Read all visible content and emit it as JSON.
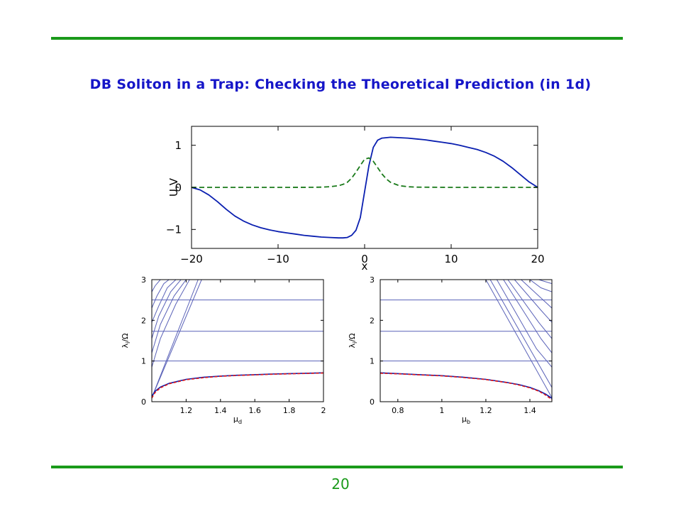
{
  "slide": {
    "title": "DB Soliton in a Trap: Checking the Theoretical Prediction (in 1d)",
    "page_number": "20",
    "rule_color": "#1a9a1a",
    "title_color": "#1515c8"
  },
  "chart_data": [
    {
      "type": "line",
      "xlabel": "x",
      "ylabel": "U,V",
      "xlim": [
        -20,
        20
      ],
      "ylim": [
        -1.45,
        1.45
      ],
      "xticks": [
        -20,
        -10,
        0,
        10,
        20
      ],
      "xtick_labels": [
        "−20",
        "−10",
        "0",
        "10",
        "20"
      ],
      "yticks": [
        -1,
        0,
        1
      ],
      "ytick_labels": [
        "−1",
        "0",
        "1"
      ],
      "series": [
        {
          "style": "solid",
          "color": "#0a1fb0",
          "x": [
            -20,
            -19,
            -18,
            -17,
            -16,
            -15,
            -14,
            -13,
            -12,
            -11,
            -10,
            -9,
            -8,
            -7,
            -6,
            -5,
            -4,
            -3,
            -2.5,
            -2,
            -1.5,
            -1,
            -0.5,
            0,
            0.5,
            1,
            1.5,
            2,
            2.5,
            3,
            4,
            5,
            6,
            7,
            8,
            9,
            10,
            11,
            12,
            13,
            14,
            15,
            16,
            17,
            18,
            19,
            20
          ],
          "y": [
            0,
            -0.06,
            -0.18,
            -0.34,
            -0.52,
            -0.68,
            -0.8,
            -0.89,
            -0.96,
            -1.01,
            -1.05,
            -1.08,
            -1.11,
            -1.14,
            -1.16,
            -1.18,
            -1.19,
            -1.2,
            -1.2,
            -1.19,
            -1.14,
            -1.02,
            -0.72,
            -0.1,
            0.52,
            0.95,
            1.12,
            1.17,
            1.18,
            1.19,
            1.18,
            1.17,
            1.15,
            1.13,
            1.1,
            1.07,
            1.04,
            1.0,
            0.95,
            0.9,
            0.83,
            0.74,
            0.62,
            0.47,
            0.3,
            0.13,
            0.0
          ]
        },
        {
          "style": "dashed",
          "color": "#1a7a1a",
          "x": [
            -20,
            -10,
            -6,
            -5,
            -4,
            -3,
            -2.5,
            -2,
            -1.5,
            -1,
            -0.5,
            0,
            0.5,
            1,
            1.5,
            2,
            2.5,
            3,
            4,
            5,
            6,
            10,
            20
          ],
          "y": [
            0,
            0,
            0.002,
            0.005,
            0.015,
            0.04,
            0.07,
            0.12,
            0.22,
            0.36,
            0.52,
            0.67,
            0.7,
            0.62,
            0.47,
            0.32,
            0.2,
            0.12,
            0.04,
            0.015,
            0.005,
            0,
            0
          ]
        }
      ]
    },
    {
      "type": "line",
      "xlabel": "μ",
      "xlabel_sub": "d",
      "ylabel": "λ",
      "ylabel_sub": "i",
      "ylabel_suffix": "/Ω",
      "xlim": [
        1.0,
        2.0
      ],
      "ylim": [
        0,
        3
      ],
      "xticks": [
        1.2,
        1.4,
        1.6,
        1.8,
        2.0
      ],
      "xtick_labels": [
        "1.2",
        "1.4",
        "1.6",
        "1.8",
        "2"
      ],
      "yticks": [
        0,
        1,
        2,
        3
      ],
      "ytick_labels": [
        "0",
        "1",
        "2",
        "3"
      ],
      "horizontal_lines": [
        1.0,
        1.732,
        2.5
      ],
      "dense_lines": [
        {
          "x": [
            1.0,
            1.27
          ],
          "y": [
            0.1,
            3.0
          ]
        },
        {
          "x": [
            1.0,
            1.29
          ],
          "y": [
            0.1,
            3.0
          ]
        },
        {
          "x": [
            1.0,
            1.05,
            1.14,
            1.22
          ],
          "y": [
            0.85,
            1.55,
            2.4,
            3.0
          ]
        },
        {
          "x": [
            1.0,
            1.05,
            1.13,
            1.2
          ],
          "y": [
            1.2,
            1.9,
            2.6,
            3.0
          ]
        },
        {
          "x": [
            1.0,
            1.04,
            1.11,
            1.17
          ],
          "y": [
            1.55,
            2.1,
            2.7,
            3.0
          ]
        },
        {
          "x": [
            1.0,
            1.04,
            1.09,
            1.14
          ],
          "y": [
            1.95,
            2.35,
            2.8,
            3.0
          ]
        },
        {
          "x": [
            1.0,
            1.03,
            1.07,
            1.1
          ],
          "y": [
            2.3,
            2.6,
            2.9,
            3.0
          ]
        },
        {
          "x": [
            1.0,
            1.02,
            1.05
          ],
          "y": [
            2.7,
            2.85,
            3.0
          ]
        }
      ],
      "series": [
        {
          "style": "solid",
          "color": "#0a1fb0",
          "x": [
            1.0,
            1.02,
            1.05,
            1.1,
            1.2,
            1.3,
            1.4,
            1.5,
            1.6,
            1.7,
            1.8,
            1.9,
            2.0
          ],
          "y": [
            0.13,
            0.26,
            0.36,
            0.45,
            0.55,
            0.6,
            0.63,
            0.65,
            0.665,
            0.68,
            0.69,
            0.7,
            0.71
          ]
        },
        {
          "style": "dashed",
          "color": "#e01818",
          "x": [
            1.0,
            1.02,
            1.05,
            1.1,
            1.2,
            1.3,
            1.4,
            1.5,
            1.6,
            1.7,
            1.8,
            1.9,
            2.0
          ],
          "y": [
            0.09,
            0.23,
            0.34,
            0.44,
            0.54,
            0.59,
            0.625,
            0.645,
            0.66,
            0.675,
            0.685,
            0.695,
            0.705
          ]
        }
      ]
    },
    {
      "type": "line",
      "xlabel": "μ",
      "xlabel_sub": "b",
      "ylabel": "λ",
      "ylabel_sub": "i",
      "ylabel_suffix": "/Ω",
      "xlim": [
        0.72,
        1.5
      ],
      "ylim": [
        0,
        3
      ],
      "xticks": [
        0.8,
        1.0,
        1.2,
        1.4
      ],
      "xtick_labels": [
        "0.8",
        "1",
        "1.2",
        "1.4"
      ],
      "yticks": [
        0,
        1,
        2,
        3
      ],
      "ytick_labels": [
        "0",
        "1",
        "2",
        "3"
      ],
      "horizontal_lines": [
        1.0,
        1.732,
        2.5
      ],
      "dense_lines": [
        {
          "x": [
            1.2,
            1.5
          ],
          "y": [
            3.0,
            0.1
          ]
        },
        {
          "x": [
            1.22,
            1.5
          ],
          "y": [
            3.0,
            0.35
          ]
        },
        {
          "x": [
            1.25,
            1.43,
            1.5
          ],
          "y": [
            3.0,
            1.3,
            0.85
          ]
        },
        {
          "x": [
            1.28,
            1.45,
            1.5
          ],
          "y": [
            3.0,
            1.55,
            1.2
          ]
        },
        {
          "x": [
            1.3,
            1.44,
            1.5
          ],
          "y": [
            3.0,
            1.95,
            1.55
          ]
        },
        {
          "x": [
            1.33,
            1.45,
            1.5
          ],
          "y": [
            3.0,
            2.25,
            1.95
          ]
        },
        {
          "x": [
            1.36,
            1.45,
            1.5
          ],
          "y": [
            3.0,
            2.55,
            2.3
          ]
        },
        {
          "x": [
            1.4,
            1.45,
            1.5
          ],
          "y": [
            3.0,
            2.8,
            2.7
          ]
        },
        {
          "x": [
            1.44,
            1.5
          ],
          "y": [
            3.0,
            2.9
          ]
        }
      ],
      "series": [
        {
          "style": "solid",
          "color": "#0a1fb0",
          "x": [
            0.72,
            0.8,
            0.9,
            1.0,
            1.1,
            1.2,
            1.3,
            1.35,
            1.4,
            1.44,
            1.47,
            1.49,
            1.5
          ],
          "y": [
            0.71,
            0.69,
            0.665,
            0.64,
            0.6,
            0.55,
            0.47,
            0.42,
            0.35,
            0.27,
            0.19,
            0.12,
            0.08
          ]
        },
        {
          "style": "dashed",
          "color": "#e01818",
          "x": [
            0.72,
            0.8,
            0.9,
            1.0,
            1.1,
            1.2,
            1.3,
            1.35,
            1.4,
            1.44,
            1.47,
            1.49,
            1.5
          ],
          "y": [
            0.7,
            0.685,
            0.66,
            0.635,
            0.595,
            0.545,
            0.465,
            0.41,
            0.34,
            0.26,
            0.17,
            0.09,
            0.05
          ]
        }
      ]
    }
  ]
}
